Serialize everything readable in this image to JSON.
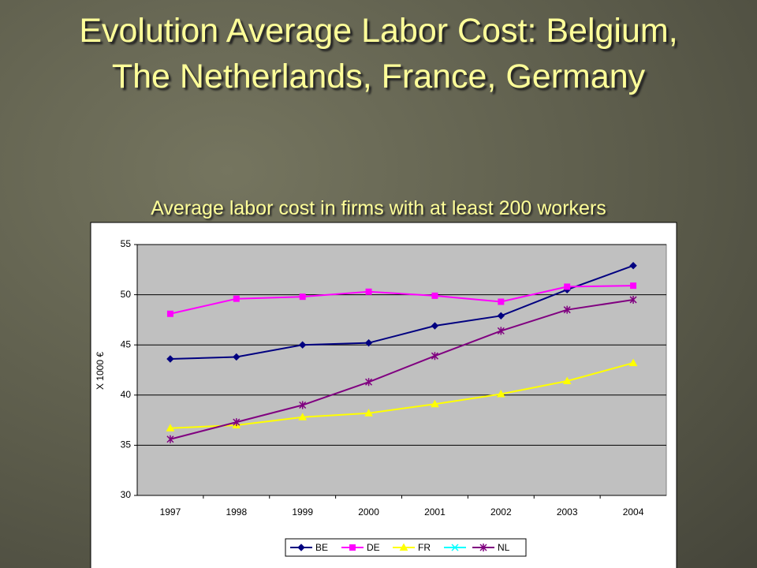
{
  "title": "Evolution Average Labor Cost: Belgium, The Netherlands, France, Germany",
  "subtitle": "Average labor cost in firms with at least 200 workers",
  "chart_data": {
    "type": "line",
    "ylabel": "X 1000 €",
    "categories": [
      "1997",
      "1998",
      "1999",
      "2000",
      "2001",
      "2002",
      "2003",
      "2004"
    ],
    "series": [
      {
        "name": "BE",
        "color": "#000080",
        "marker": "diamond",
        "values": [
          43.6,
          43.8,
          45.0,
          45.2,
          46.9,
          47.9,
          50.5,
          52.9
        ]
      },
      {
        "name": "DE",
        "color": "#ff00ff",
        "marker": "square",
        "values": [
          48.1,
          49.6,
          49.8,
          50.3,
          49.9,
          49.3,
          50.8,
          50.9
        ]
      },
      {
        "name": "FR",
        "color": "#ffff00",
        "marker": "triangle",
        "values": [
          36.7,
          37.0,
          37.8,
          38.2,
          39.1,
          40.1,
          41.4,
          43.2
        ]
      },
      {
        "name": null,
        "color": "#00ffff",
        "marker": "x",
        "values": [
          null,
          null,
          null,
          null,
          null,
          null,
          null,
          null
        ]
      },
      {
        "name": "NL",
        "color": "#800080",
        "marker": "star",
        "values": [
          35.6,
          37.3,
          39.0,
          41.3,
          43.9,
          46.4,
          48.5,
          49.5
        ]
      }
    ],
    "ylim": [
      30,
      55
    ],
    "yticks": [
      30,
      35,
      40,
      45,
      50,
      55
    ],
    "grid": true,
    "legend": "bottom"
  }
}
